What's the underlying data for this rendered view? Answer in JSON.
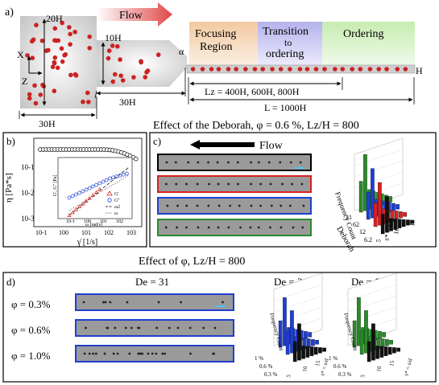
{
  "panel_a": {
    "label": "a)",
    "flow_label": "Flow",
    "dim_20h": "20H",
    "dim_10h": "10H",
    "dim_30h_inner": "30H",
    "dim_30h_outer": "30H",
    "axis_x": "X",
    "axis_z": "Z",
    "alpha": "α",
    "h_label": "H",
    "region_focusing": [
      "Focusing",
      "Region"
    ],
    "region_transition": [
      "Transition",
      "to",
      "ordering"
    ],
    "region_ordering": "Ordering",
    "lz_label": "Lz = 400H, 600H, 800H",
    "l_label": "L = 1000H",
    "colors": {
      "focusing": "#f2c9a0",
      "transition": "#b5b2ee",
      "ordering": "#c6ecb0",
      "particle": "#cc2222",
      "flow_arrow": "#e04848"
    }
  },
  "section1_title": "Effect of the Deborah, φ = 0.6 %, Lz/H = 800",
  "panel_b": {
    "label": "b)",
    "ylabel": "η [Pa*s]",
    "xlabel": "γ̇ [1/s]",
    "y_ticks": [
      "10-1",
      "10-2",
      "10-3"
    ],
    "x_ticks": [
      "10-1",
      "100",
      "101",
      "102",
      "103"
    ],
    "inset": {
      "ylabel": "G', G'' [Pa]",
      "xlabel": "ω [rad/s]",
      "x_ticks": [
        "10-1",
        "100",
        "101",
        "102"
      ],
      "legend": [
        "G'",
        "G''",
        "ω2",
        "ω"
      ]
    }
  },
  "panel_c": {
    "label": "c)",
    "flow_label": "Flow",
    "strip_colors": [
      "#000000",
      "#d82020",
      "#1f3fd0",
      "#2a8a2a"
    ],
    "chart_axes": {
      "z": "Frequency Count",
      "y": "Deborah",
      "x": "s* = s/d"
    },
    "deborah_ticks": [
      "31",
      "62",
      "12",
      "6.2"
    ],
    "s_ticks": [
      "5",
      "10",
      "15"
    ]
  },
  "section2_title": "Effect of φ, Lz/H = 800",
  "panel_d": {
    "label": "d)",
    "de_title": "De = 31",
    "chart1_title": "De = 31",
    "chart2_title": "De = 62",
    "phi_labels": [
      "φ = 0.3%",
      "φ = 0.6%",
      "φ = 1.0%"
    ],
    "chart_axes": {
      "z": "Frequency Count",
      "y": "φ",
      "x": "s* = s/d"
    },
    "phi_ticks": [
      "1 %",
      "0.6 %",
      "0.3 %"
    ],
    "s_ticks": [
      "5",
      "10",
      "15"
    ],
    "chart_colors": [
      "#1f3fd0",
      "#2a8a2a"
    ]
  }
}
